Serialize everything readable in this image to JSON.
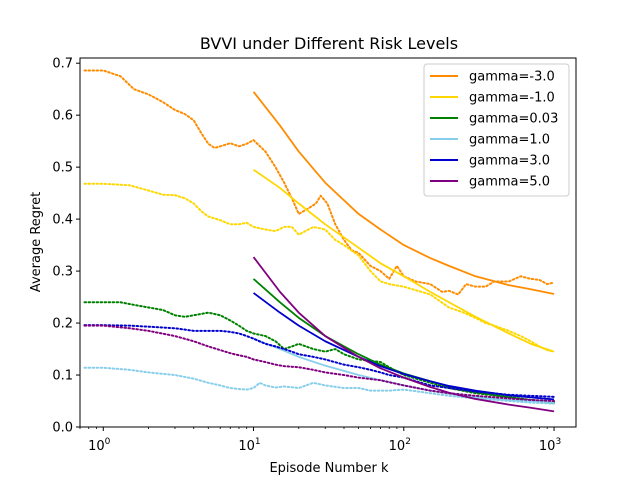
{
  "chart_data": {
    "type": "line",
    "title": "BVVI under Different Risk Levels",
    "xlabel": "Episode Number k",
    "ylabel": "Average Regret",
    "xscale": "log",
    "xlim": [
      0.7,
      1400
    ],
    "ylim": [
      0.0,
      0.71
    ],
    "yticks": [
      0.0,
      0.1,
      0.2,
      0.3,
      0.4,
      0.5,
      0.6,
      0.7
    ],
    "ytick_labels": [
      "0.0",
      "0.1",
      "0.2",
      "0.3",
      "0.4",
      "0.5",
      "0.6",
      "0.7"
    ],
    "xticks": [
      1,
      10,
      100,
      1000
    ],
    "xtick_labels": [
      {
        "base": "10",
        "exp": "0"
      },
      {
        "base": "10",
        "exp": "1"
      },
      {
        "base": "10",
        "exp": "2"
      },
      {
        "base": "10",
        "exp": "3"
      }
    ],
    "grid": false,
    "legend_position": "top-right",
    "series": [
      {
        "name": "gamma=-3.0",
        "color": "#ff8c00",
        "fitted": [
          [
            10,
            0.645
          ],
          [
            15,
            0.58
          ],
          [
            20,
            0.53
          ],
          [
            30,
            0.47
          ],
          [
            50,
            0.41
          ],
          [
            70,
            0.38
          ],
          [
            100,
            0.35
          ],
          [
            150,
            0.325
          ],
          [
            200,
            0.31
          ],
          [
            300,
            0.29
          ],
          [
            500,
            0.273
          ],
          [
            700,
            0.265
          ],
          [
            1000,
            0.256
          ]
        ],
        "empirical": [
          [
            0.75,
            0.686
          ],
          [
            1,
            0.686
          ],
          [
            1.3,
            0.675
          ],
          [
            1.6,
            0.65
          ],
          [
            2,
            0.64
          ],
          [
            2.5,
            0.625
          ],
          [
            3,
            0.61
          ],
          [
            3.5,
            0.602
          ],
          [
            4,
            0.59
          ],
          [
            4.5,
            0.565
          ],
          [
            5,
            0.545
          ],
          [
            5.5,
            0.537
          ],
          [
            6,
            0.54
          ],
          [
            7,
            0.546
          ],
          [
            8,
            0.54
          ],
          [
            9,
            0.545
          ],
          [
            10,
            0.552
          ],
          [
            12,
            0.53
          ],
          [
            14,
            0.5
          ],
          [
            16,
            0.47
          ],
          [
            18,
            0.44
          ],
          [
            20,
            0.41
          ],
          [
            23,
            0.42
          ],
          [
            26,
            0.43
          ],
          [
            28,
            0.445
          ],
          [
            31,
            0.43
          ],
          [
            35,
            0.39
          ],
          [
            40,
            0.36
          ],
          [
            45,
            0.34
          ],
          [
            50,
            0.335
          ],
          [
            60,
            0.31
          ],
          [
            70,
            0.3
          ],
          [
            80,
            0.285
          ],
          [
            90,
            0.31
          ],
          [
            100,
            0.29
          ],
          [
            120,
            0.28
          ],
          [
            150,
            0.275
          ],
          [
            180,
            0.26
          ],
          [
            200,
            0.262
          ],
          [
            230,
            0.255
          ],
          [
            260,
            0.275
          ],
          [
            300,
            0.27
          ],
          [
            350,
            0.27
          ],
          [
            400,
            0.28
          ],
          [
            500,
            0.28
          ],
          [
            600,
            0.29
          ],
          [
            700,
            0.285
          ],
          [
            800,
            0.283
          ],
          [
            900,
            0.275
          ],
          [
            1000,
            0.278
          ]
        ]
      },
      {
        "name": "gamma=-1.0",
        "color": "#ffd700",
        "fitted": [
          [
            10,
            0.495
          ],
          [
            15,
            0.46
          ],
          [
            20,
            0.43
          ],
          [
            30,
            0.39
          ],
          [
            50,
            0.345
          ],
          [
            70,
            0.315
          ],
          [
            100,
            0.29
          ],
          [
            150,
            0.26
          ],
          [
            200,
            0.24
          ],
          [
            300,
            0.212
          ],
          [
            500,
            0.18
          ],
          [
            700,
            0.16
          ],
          [
            1000,
            0.145
          ]
        ],
        "empirical": [
          [
            0.75,
            0.468
          ],
          [
            1,
            0.468
          ],
          [
            1.5,
            0.465
          ],
          [
            2,
            0.455
          ],
          [
            2.5,
            0.447
          ],
          [
            3,
            0.446
          ],
          [
            3.5,
            0.44
          ],
          [
            4,
            0.43
          ],
          [
            4.5,
            0.415
          ],
          [
            5,
            0.405
          ],
          [
            6,
            0.398
          ],
          [
            7,
            0.39
          ],
          [
            8,
            0.39
          ],
          [
            9,
            0.393
          ],
          [
            10,
            0.385
          ],
          [
            12,
            0.38
          ],
          [
            14,
            0.377
          ],
          [
            16,
            0.385
          ],
          [
            18,
            0.385
          ],
          [
            20,
            0.37
          ],
          [
            25,
            0.385
          ],
          [
            30,
            0.38
          ],
          [
            35,
            0.36
          ],
          [
            40,
            0.35
          ],
          [
            50,
            0.33
          ],
          [
            60,
            0.3
          ],
          [
            70,
            0.28
          ],
          [
            80,
            0.275
          ],
          [
            100,
            0.27
          ],
          [
            150,
            0.255
          ],
          [
            200,
            0.23
          ],
          [
            250,
            0.22
          ],
          [
            300,
            0.21
          ],
          [
            350,
            0.2
          ],
          [
            400,
            0.195
          ],
          [
            500,
            0.185
          ],
          [
            600,
            0.175
          ],
          [
            700,
            0.165
          ],
          [
            800,
            0.155
          ],
          [
            900,
            0.148
          ],
          [
            1000,
            0.145
          ]
        ]
      },
      {
        "name": "gamma=0.03",
        "color": "#008000",
        "fitted": [
          [
            10,
            0.285
          ],
          [
            15,
            0.24
          ],
          [
            20,
            0.21
          ],
          [
            30,
            0.175
          ],
          [
            50,
            0.14
          ],
          [
            70,
            0.12
          ],
          [
            100,
            0.103
          ],
          [
            150,
            0.088
          ],
          [
            200,
            0.078
          ],
          [
            300,
            0.067
          ],
          [
            500,
            0.057
          ],
          [
            700,
            0.052
          ],
          [
            1000,
            0.046
          ]
        ],
        "empirical": [
          [
            0.75,
            0.24
          ],
          [
            1,
            0.24
          ],
          [
            1.3,
            0.24
          ],
          [
            1.6,
            0.235
          ],
          [
            2,
            0.23
          ],
          [
            2.5,
            0.225
          ],
          [
            3,
            0.215
          ],
          [
            3.5,
            0.212
          ],
          [
            4,
            0.215
          ],
          [
            5,
            0.22
          ],
          [
            6,
            0.215
          ],
          [
            7,
            0.205
          ],
          [
            8,
            0.195
          ],
          [
            9,
            0.185
          ],
          [
            10,
            0.18
          ],
          [
            12,
            0.175
          ],
          [
            14,
            0.165
          ],
          [
            16,
            0.15
          ],
          [
            18,
            0.155
          ],
          [
            20,
            0.16
          ],
          [
            25,
            0.15
          ],
          [
            30,
            0.145
          ],
          [
            35,
            0.15
          ],
          [
            40,
            0.14
          ],
          [
            50,
            0.13
          ],
          [
            70,
            0.125
          ],
          [
            80,
            0.115
          ],
          [
            100,
            0.1
          ],
          [
            150,
            0.085
          ],
          [
            200,
            0.075
          ],
          [
            300,
            0.065
          ],
          [
            500,
            0.058
          ],
          [
            700,
            0.052
          ],
          [
            1000,
            0.048
          ]
        ]
      },
      {
        "name": "gamma=1.0",
        "color": "#87ceeb",
        "fitted": [
          [
            10,
            0.17
          ],
          [
            15,
            0.15
          ],
          [
            20,
            0.135
          ],
          [
            30,
            0.118
          ],
          [
            50,
            0.1
          ],
          [
            70,
            0.09
          ],
          [
            100,
            0.08
          ],
          [
            150,
            0.07
          ],
          [
            200,
            0.064
          ],
          [
            300,
            0.058
          ],
          [
            500,
            0.052
          ],
          [
            700,
            0.05
          ],
          [
            1000,
            0.048
          ]
        ],
        "empirical": [
          [
            0.75,
            0.114
          ],
          [
            1,
            0.114
          ],
          [
            1.5,
            0.11
          ],
          [
            2,
            0.105
          ],
          [
            3,
            0.1
          ],
          [
            4,
            0.093
          ],
          [
            5,
            0.085
          ],
          [
            6,
            0.08
          ],
          [
            7,
            0.075
          ],
          [
            8,
            0.073
          ],
          [
            9,
            0.072
          ],
          [
            10,
            0.075
          ],
          [
            11,
            0.085
          ],
          [
            12,
            0.08
          ],
          [
            14,
            0.076
          ],
          [
            16,
            0.078
          ],
          [
            20,
            0.075
          ],
          [
            25,
            0.085
          ],
          [
            30,
            0.08
          ],
          [
            40,
            0.075
          ],
          [
            50,
            0.075
          ],
          [
            60,
            0.07
          ],
          [
            80,
            0.07
          ],
          [
            100,
            0.072
          ],
          [
            150,
            0.065
          ],
          [
            200,
            0.06
          ],
          [
            300,
            0.055
          ],
          [
            500,
            0.05
          ],
          [
            700,
            0.047
          ],
          [
            1000,
            0.045
          ]
        ]
      },
      {
        "name": "gamma=3.0",
        "color": "#0000cd",
        "fitted": [
          [
            10,
            0.258
          ],
          [
            15,
            0.22
          ],
          [
            20,
            0.195
          ],
          [
            30,
            0.165
          ],
          [
            50,
            0.135
          ],
          [
            70,
            0.117
          ],
          [
            100,
            0.102
          ],
          [
            150,
            0.088
          ],
          [
            200,
            0.079
          ],
          [
            300,
            0.07
          ],
          [
            500,
            0.061
          ],
          [
            700,
            0.057
          ],
          [
            1000,
            0.053
          ]
        ],
        "empirical": [
          [
            0.75,
            0.196
          ],
          [
            1,
            0.196
          ],
          [
            1.5,
            0.195
          ],
          [
            2,
            0.193
          ],
          [
            3,
            0.19
          ],
          [
            4,
            0.185
          ],
          [
            5,
            0.185
          ],
          [
            6,
            0.185
          ],
          [
            7,
            0.183
          ],
          [
            8,
            0.18
          ],
          [
            9,
            0.175
          ],
          [
            10,
            0.17
          ],
          [
            12,
            0.16
          ],
          [
            14,
            0.155
          ],
          [
            16,
            0.15
          ],
          [
            18,
            0.145
          ],
          [
            20,
            0.14
          ],
          [
            25,
            0.135
          ],
          [
            30,
            0.13
          ],
          [
            40,
            0.12
          ],
          [
            50,
            0.115
          ],
          [
            60,
            0.11
          ],
          [
            70,
            0.105
          ],
          [
            80,
            0.1
          ],
          [
            100,
            0.095
          ],
          [
            150,
            0.08
          ],
          [
            200,
            0.075
          ],
          [
            300,
            0.068
          ],
          [
            500,
            0.062
          ],
          [
            700,
            0.06
          ],
          [
            1000,
            0.058
          ]
        ]
      },
      {
        "name": "gamma=5.0",
        "color": "#800080",
        "fitted": [
          [
            10,
            0.327
          ],
          [
            15,
            0.26
          ],
          [
            20,
            0.22
          ],
          [
            30,
            0.175
          ],
          [
            50,
            0.135
          ],
          [
            70,
            0.113
          ],
          [
            100,
            0.095
          ],
          [
            150,
            0.077
          ],
          [
            200,
            0.066
          ],
          [
            300,
            0.054
          ],
          [
            500,
            0.043
          ],
          [
            700,
            0.037
          ],
          [
            1000,
            0.03
          ]
        ],
        "empirical": [
          [
            0.75,
            0.195
          ],
          [
            1,
            0.195
          ],
          [
            1.5,
            0.19
          ],
          [
            2,
            0.185
          ],
          [
            3,
            0.175
          ],
          [
            4,
            0.165
          ],
          [
            5,
            0.155
          ],
          [
            6,
            0.148
          ],
          [
            7,
            0.142
          ],
          [
            8,
            0.138
          ],
          [
            9,
            0.135
          ],
          [
            10,
            0.13
          ],
          [
            12,
            0.125
          ],
          [
            14,
            0.12
          ],
          [
            16,
            0.117
          ],
          [
            20,
            0.115
          ],
          [
            25,
            0.11
          ],
          [
            30,
            0.105
          ],
          [
            40,
            0.1
          ],
          [
            50,
            0.095
          ],
          [
            70,
            0.09
          ],
          [
            100,
            0.08
          ],
          [
            150,
            0.07
          ],
          [
            200,
            0.065
          ],
          [
            300,
            0.06
          ],
          [
            500,
            0.055
          ],
          [
            700,
            0.052
          ],
          [
            1000,
            0.05
          ]
        ]
      }
    ]
  }
}
